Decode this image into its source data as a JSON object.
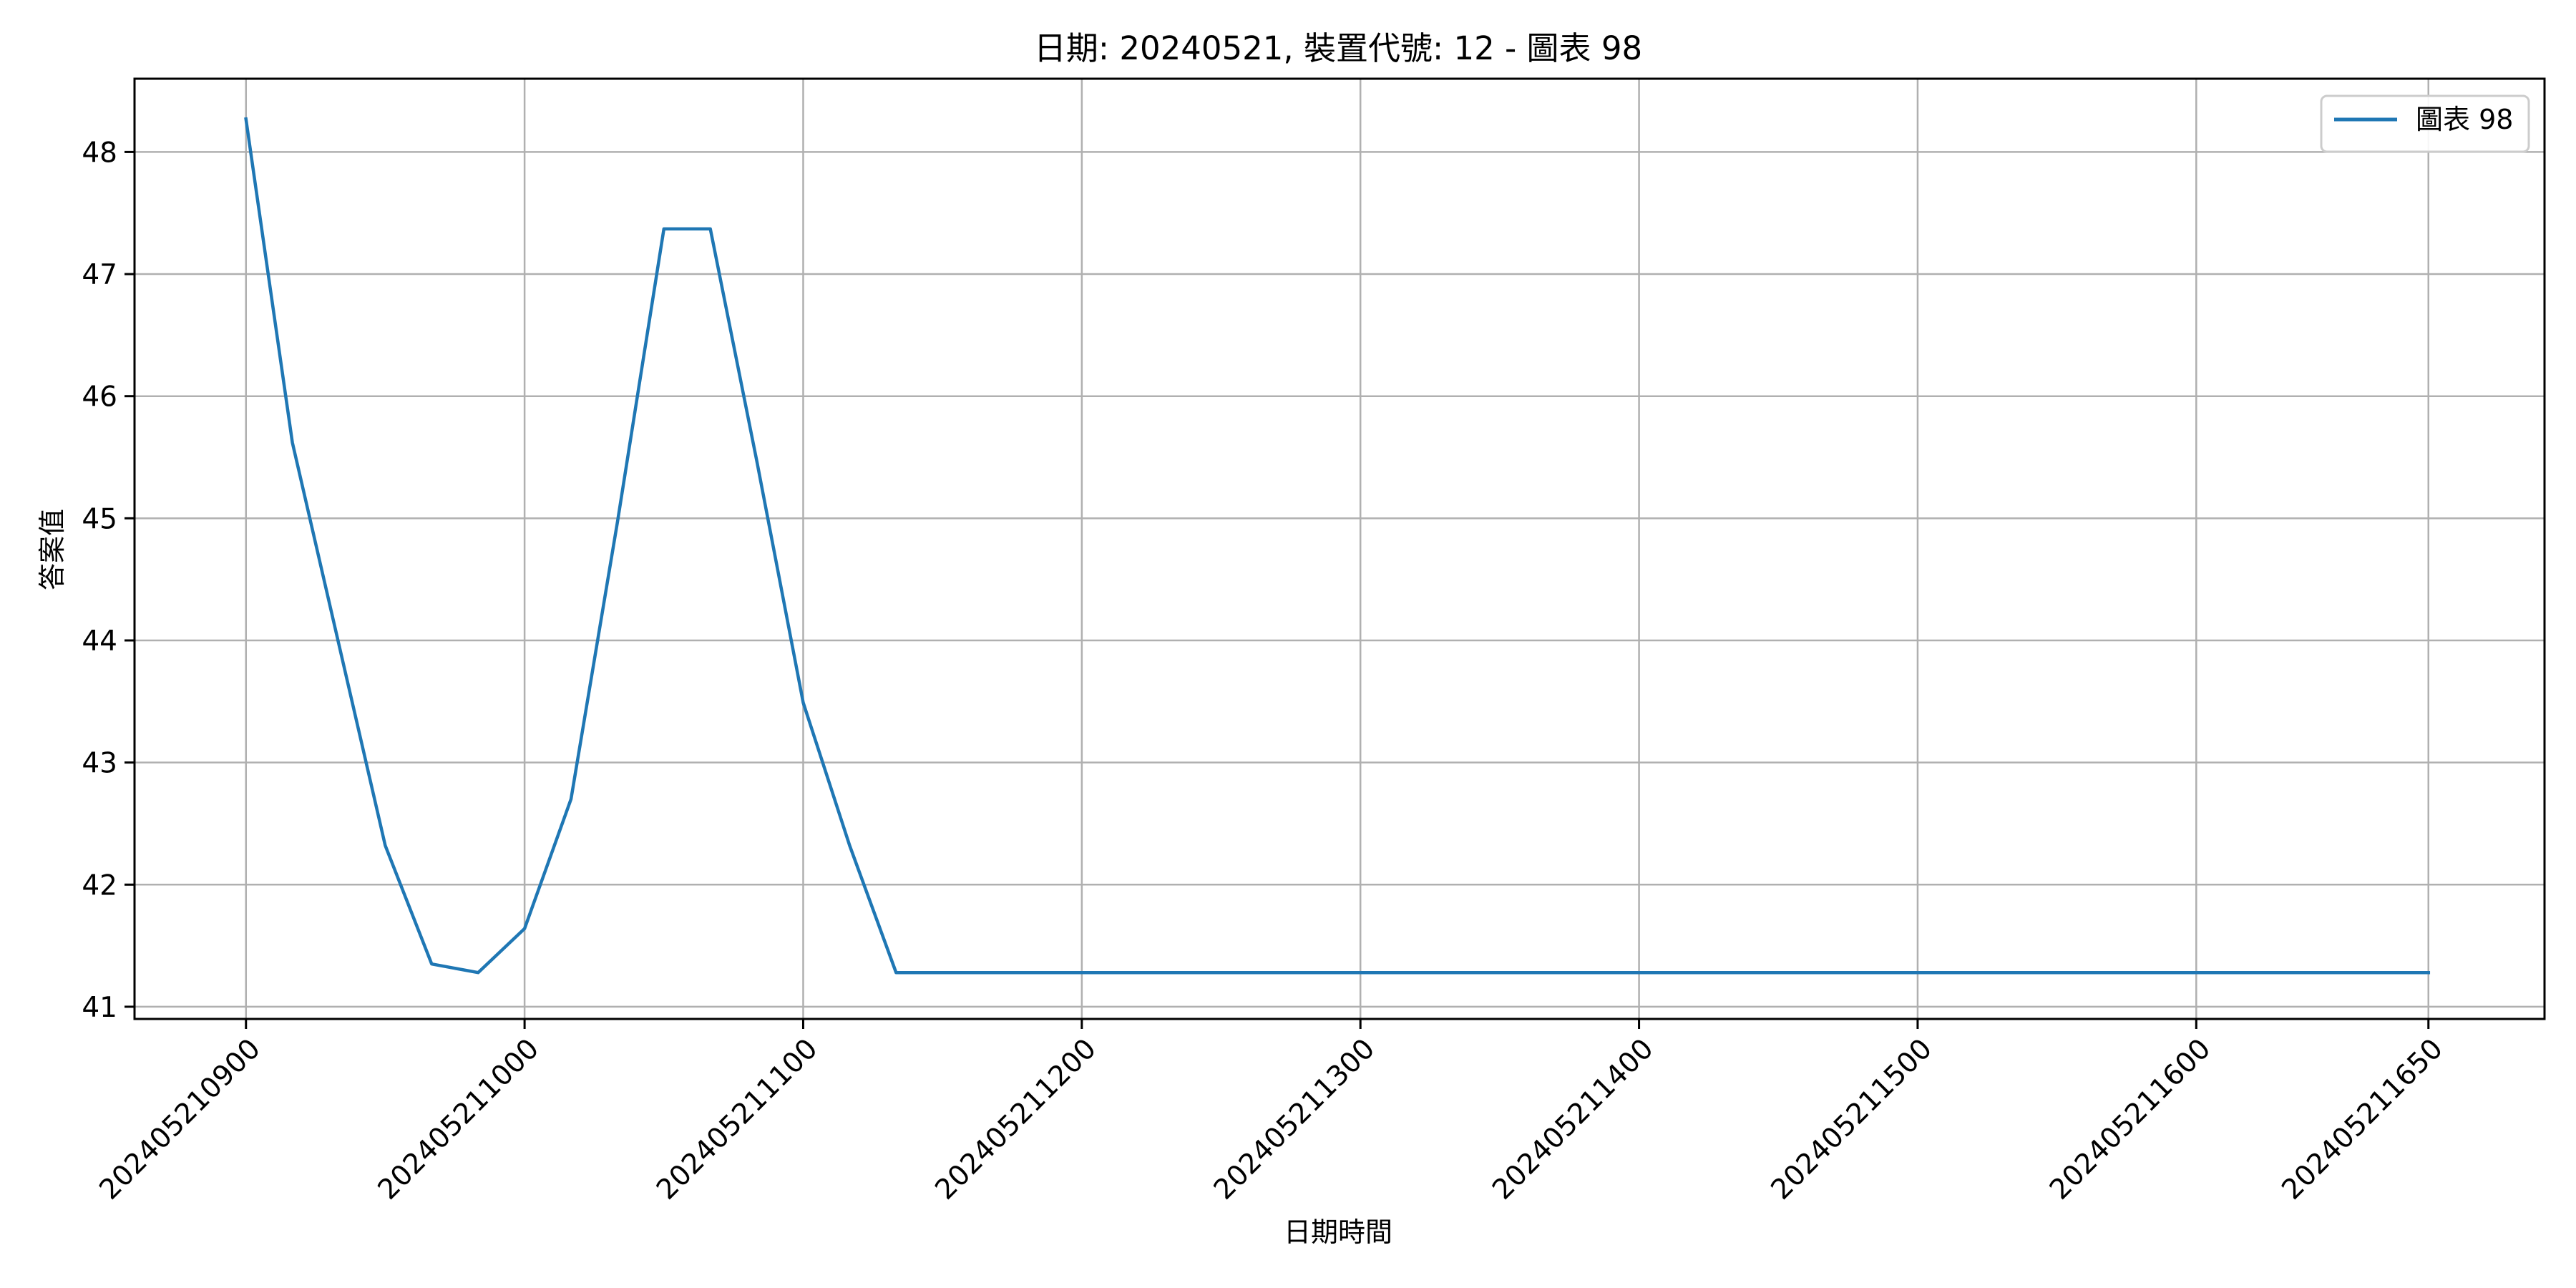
{
  "chart_data": {
    "type": "line",
    "title": "日期: 20240521, 裝置代號: 12 - 圖表 98",
    "xlabel": "日期時間",
    "ylabel": "答案值",
    "x_tick_labels": [
      "202405210900",
      "202405211000",
      "202405211100",
      "202405211200",
      "202405211300",
      "202405211400",
      "202405211500",
      "202405211600",
      "202405211650"
    ],
    "x_tick_values": [
      "09:00",
      "10:00",
      "11:00",
      "12:00",
      "13:00",
      "14:00",
      "15:00",
      "16:00",
      "16:50"
    ],
    "y_ticks": [
      41,
      42,
      43,
      44,
      45,
      46,
      47,
      48
    ],
    "xlim": [
      "08:36",
      "17:15"
    ],
    "ylim": [
      40.9,
      48.6
    ],
    "grid": true,
    "legend_position": "top-right",
    "series": [
      {
        "name": "圖表 98",
        "color": "#1f77b4",
        "x": [
          "09:00",
          "09:10",
          "09:20",
          "09:30",
          "09:40",
          "09:50",
          "10:00",
          "10:10",
          "10:20",
          "10:30",
          "10:40",
          "10:50",
          "11:00",
          "11:10",
          "11:20",
          "11:30",
          "16:50"
        ],
        "values": [
          48.27,
          45.62,
          43.97,
          42.32,
          41.35,
          41.28,
          41.64,
          42.7,
          44.97,
          47.37,
          47.37,
          45.47,
          43.49,
          42.32,
          41.28,
          41.28,
          41.28
        ]
      }
    ]
  }
}
